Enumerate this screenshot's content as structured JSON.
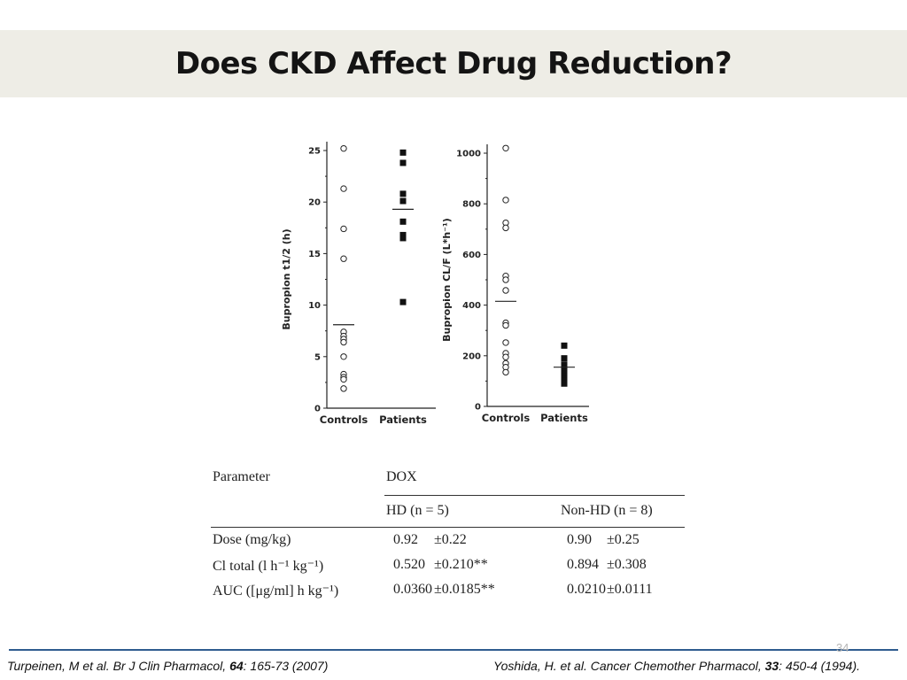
{
  "slide": {
    "title": "Does CKD Affect Drug Reduction?",
    "page_number": "34"
  },
  "chart_data": [
    {
      "type": "scatter",
      "ylabel": "Bupropion t1/2 (h)",
      "ylim": [
        0,
        25
      ],
      "yticks": [
        0,
        5,
        10,
        15,
        20,
        25
      ],
      "categories": [
        "Controls",
        "Patients"
      ],
      "series": [
        {
          "name": "Controls",
          "marker": "open-circle",
          "values": [
            25.2,
            21.3,
            17.4,
            14.5,
            7.4,
            7.0,
            6.7,
            6.4,
            5.0,
            3.3,
            3.0,
            2.8,
            1.9
          ],
          "mean": 8.1
        },
        {
          "name": "Patients",
          "marker": "filled-square",
          "values": [
            24.8,
            23.8,
            20.8,
            20.1,
            18.1,
            16.8,
            16.5,
            10.3
          ],
          "mean": 19.3
        }
      ]
    },
    {
      "type": "scatter",
      "ylabel": "Bupropion CL/F (L*h⁻¹)",
      "ylim": [
        0,
        1000
      ],
      "yticks": [
        0,
        200,
        400,
        600,
        800,
        1000
      ],
      "categories": [
        "Controls",
        "Patients"
      ],
      "series": [
        {
          "name": "Controls",
          "marker": "open-circle",
          "values": [
            1020,
            815,
            725,
            705,
            515,
            500,
            458,
            330,
            320,
            252,
            210,
            195,
            170,
            155,
            135
          ],
          "mean": 415
        },
        {
          "name": "Patients",
          "marker": "filled-square",
          "values": [
            240,
            190,
            165,
            155,
            145,
            135,
            120,
            110,
            100,
            90
          ],
          "mean": 155
        }
      ]
    }
  ],
  "table": {
    "header": {
      "parameter": "Parameter",
      "group": "DOX",
      "col1": "HD (n = 5)",
      "col2": "Non-HD (n = 8)"
    },
    "rows": [
      {
        "label": "Dose (mg/kg)",
        "c1_mean": "0.92",
        "c1_sd": "±0.22",
        "c2_mean": "0.90",
        "c2_sd": "±0.25"
      },
      {
        "label": "Cl total (l h⁻¹ kg⁻¹)",
        "c1_mean": "0.520",
        "c1_sd": "±0.210**",
        "c2_mean": "0.894",
        "c2_sd": "±0.308"
      },
      {
        "label": "AUC ([μg/ml] h kg⁻¹)",
        "c1_mean": "0.0360",
        "c1_sd": "±0.0185**",
        "c2_mean": "0.0210",
        "c2_sd": "±0.0111"
      }
    ]
  },
  "citations": {
    "left": {
      "pre": "Turpeinen, M et al. Br J Clin Pharmacol, ",
      "vol": "64",
      "post": ": 165-73 (2007)"
    },
    "right": {
      "pre": "Yoshida, H. et al. Cancer Chemother Pharmacol, ",
      "vol": "33",
      "post": ": 450-4 (1994)."
    }
  },
  "colors": {
    "title_bar": "#eeede6",
    "rule": "#2f5c8f",
    "page_number": "#b5b5b5"
  }
}
